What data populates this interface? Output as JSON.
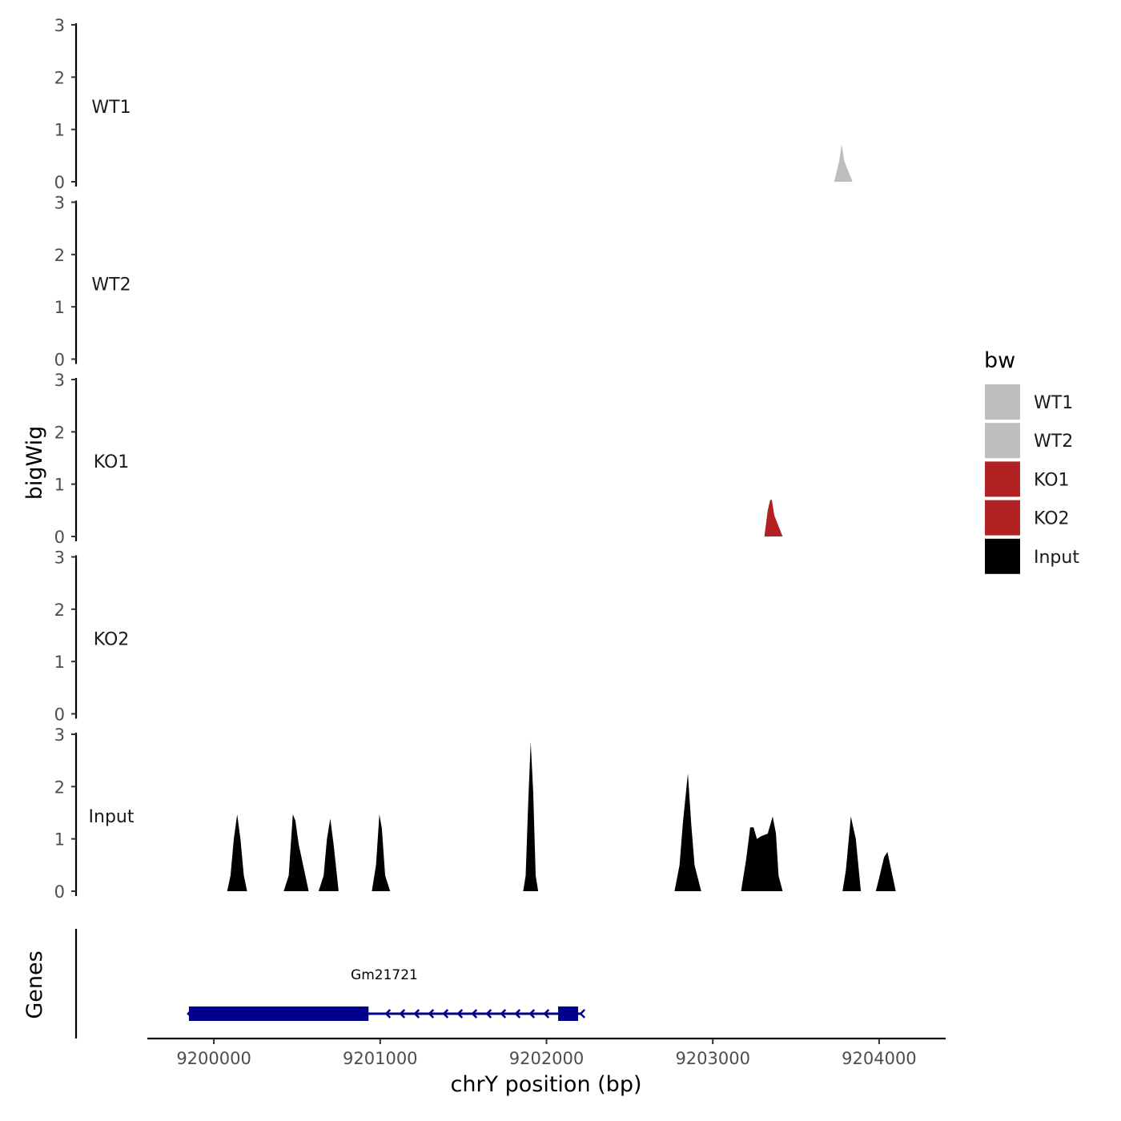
{
  "chart_data": {
    "type": "area",
    "title": "",
    "xlabel": "chrY position (bp)",
    "ylabel": "bigWig",
    "genes_label": "Genes",
    "xlim": [
      9199600,
      9204400
    ],
    "ylim": [
      0,
      3
    ],
    "x_ticks": [
      9200000,
      9201000,
      9202000,
      9203000,
      9204000
    ],
    "y_ticks": [
      0,
      1,
      2,
      3
    ],
    "grid": false,
    "legend": {
      "title": "bw",
      "placement": "right",
      "entries": [
        {
          "name": "WT1",
          "color": "#BEBEBE"
        },
        {
          "name": "WT2",
          "color": "#BEBEBE"
        },
        {
          "name": "KO1",
          "color": "#B22222"
        },
        {
          "name": "KO2",
          "color": "#B22222"
        },
        {
          "name": "Input",
          "color": "#000000"
        }
      ]
    },
    "series": [
      {
        "name": "WT1",
        "color": "#BEBEBE",
        "peaks": [
          [
            [
              9203730,
              0
            ],
            [
              9203760,
              0.4
            ],
            [
              9203775,
              0.72
            ],
            [
              9203790,
              0.4
            ],
            [
              9203840,
              0
            ]
          ]
        ]
      },
      {
        "name": "WT2",
        "color": "#BEBEBE",
        "peaks": []
      },
      {
        "name": "KO1",
        "color": "#B22222",
        "peaks": [
          [
            [
              9203310,
              0
            ],
            [
              9203330,
              0.5
            ],
            [
              9203345,
              0.7
            ],
            [
              9203355,
              0.7
            ],
            [
              9203370,
              0.4
            ],
            [
              9203420,
              0
            ]
          ]
        ]
      },
      {
        "name": "KO2",
        "color": "#B22222",
        "peaks": []
      },
      {
        "name": "Input",
        "color": "#000000",
        "peaks": [
          [
            [
              9200080,
              0
            ],
            [
              9200100,
              0.3
            ],
            [
              9200120,
              1.0
            ],
            [
              9200140,
              1.47
            ],
            [
              9200160,
              1.0
            ],
            [
              9200180,
              0.3
            ],
            [
              9200200,
              0
            ]
          ],
          [
            [
              9200420,
              0
            ],
            [
              9200450,
              0.3
            ],
            [
              9200475,
              1.47
            ],
            [
              9200490,
              1.35
            ],
            [
              9200510,
              0.9
            ],
            [
              9200570,
              0
            ]
          ],
          [
            [
              9200630,
              0
            ],
            [
              9200660,
              0.3
            ],
            [
              9200680,
              1.0
            ],
            [
              9200700,
              1.39
            ],
            [
              9200720,
              0.9
            ],
            [
              9200750,
              0
            ]
          ],
          [
            [
              9200950,
              0
            ],
            [
              9200975,
              0.5
            ],
            [
              9200995,
              1.47
            ],
            [
              9201010,
              1.2
            ],
            [
              9201030,
              0.3
            ],
            [
              9201060,
              0
            ]
          ],
          [
            [
              9201860,
              0
            ],
            [
              9201875,
              0.3
            ],
            [
              9201890,
              1.7
            ],
            [
              9201905,
              2.85
            ],
            [
              9201920,
              1.9
            ],
            [
              9201935,
              0.3
            ],
            [
              9201950,
              0
            ]
          ],
          [
            [
              9202770,
              0
            ],
            [
              9202800,
              0.5
            ],
            [
              9202820,
              1.3
            ],
            [
              9202850,
              2.25
            ],
            [
              9202870,
              1.3
            ],
            [
              9202890,
              0.5
            ],
            [
              9202930,
              0
            ]
          ],
          [
            [
              9203170,
              0
            ],
            [
              9203200,
              0.6
            ],
            [
              9203225,
              1.22
            ],
            [
              9203245,
              1.22
            ],
            [
              9203265,
              1.0
            ],
            [
              9203290,
              1.05
            ],
            [
              9203330,
              1.1
            ],
            [
              9203360,
              1.43
            ],
            [
              9203380,
              1.1
            ],
            [
              9203395,
              0.3
            ],
            [
              9203420,
              0
            ]
          ],
          [
            [
              9203780,
              0
            ],
            [
              9203800,
              0.4
            ],
            [
              9203830,
              1.43
            ],
            [
              9203860,
              1.0
            ],
            [
              9203890,
              0
            ]
          ],
          [
            [
              9203980,
              0
            ],
            [
              9204000,
              0.25
            ],
            [
              9204030,
              0.65
            ],
            [
              9204050,
              0.75
            ],
            [
              9204070,
              0.45
            ],
            [
              9204100,
              0
            ]
          ]
        ]
      }
    ],
    "genes": [
      {
        "name": "Gm21721",
        "color": "#00008B",
        "strand": "-",
        "start": 9199850,
        "end": 9202210,
        "exons": [
          [
            9199850,
            9200930
          ],
          [
            9202070,
            9202190
          ]
        ]
      }
    ]
  }
}
